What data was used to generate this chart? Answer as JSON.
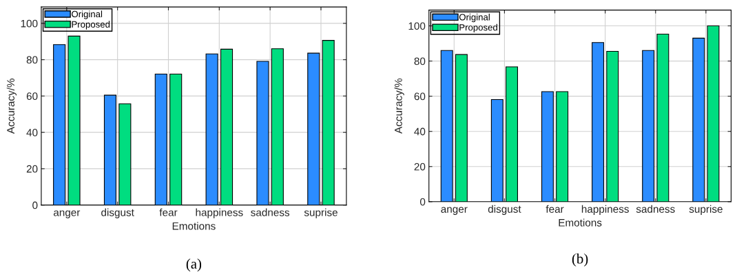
{
  "chart_data": [
    {
      "type": "bar",
      "categories": [
        "anger",
        "disgust",
        "fear",
        "happiness",
        "sadness",
        "suprise"
      ],
      "xlabel": "Emotions",
      "ylabel": "Accuracy/%",
      "ylim": [
        0,
        109
      ],
      "yticks": [
        0,
        20,
        40,
        60,
        80,
        100
      ],
      "grid": true,
      "legend": "top left",
      "annotations": [
        "(a)"
      ],
      "series": [
        {
          "name": "Original",
          "color": "#2b8cff",
          "values": [
            88.3,
            60.5,
            72.1,
            83.2,
            79.1,
            83.6
          ]
        },
        {
          "name": "Proposed",
          "color": "#00dd80",
          "values": [
            93.0,
            55.7,
            72.1,
            85.8,
            86.0,
            90.6
          ]
        }
      ]
    },
    {
      "type": "bar",
      "categories": [
        "anger",
        "disgust",
        "fear",
        "happiness",
        "sadness",
        "suprise"
      ],
      "xlabel": "Emotions",
      "ylabel": "Accuracy/%",
      "ylim": [
        0,
        109
      ],
      "yticks": [
        0,
        20,
        40,
        60,
        80,
        100
      ],
      "grid": true,
      "legend": "top left",
      "annotations": [
        "(b)"
      ],
      "series": [
        {
          "name": "Original",
          "color": "#2b8cff",
          "values": [
            86.0,
            58.1,
            62.6,
            90.5,
            86.0,
            93.0
          ]
        },
        {
          "name": "Proposed",
          "color": "#00dd80",
          "values": [
            83.7,
            76.7,
            62.6,
            85.5,
            95.3,
            100.0
          ]
        }
      ]
    }
  ]
}
